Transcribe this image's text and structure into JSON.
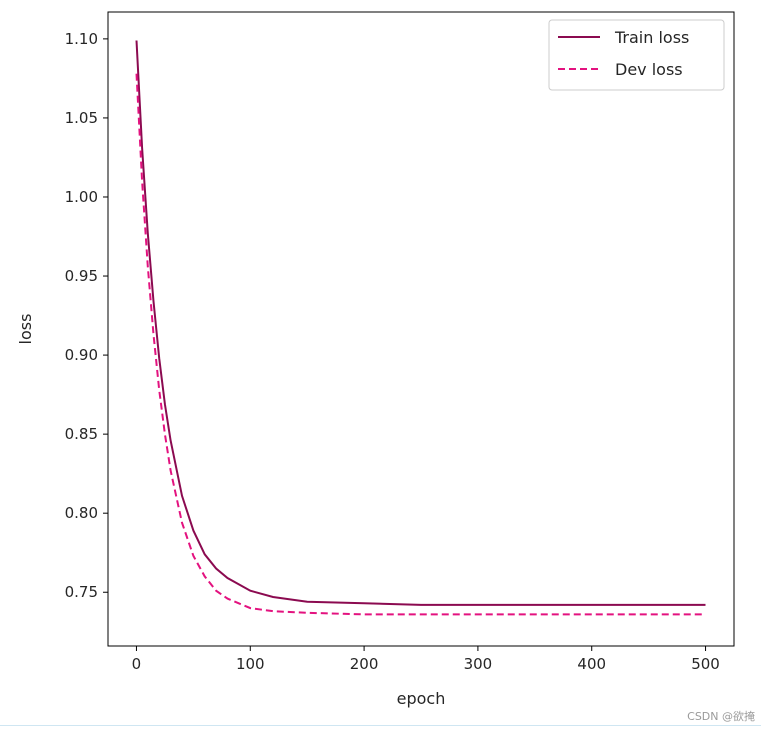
{
  "chart_data": {
    "type": "line",
    "title": "",
    "xlabel": "epoch",
    "ylabel": "loss",
    "xlim": [
      -25,
      525
    ],
    "ylim": [
      0.716,
      1.117
    ],
    "x_ticks": [
      0,
      100,
      200,
      300,
      400,
      500
    ],
    "y_ticks": [
      0.75,
      0.8,
      0.85,
      0.9,
      0.95,
      1.0,
      1.05,
      1.1
    ],
    "legend_position": "top-right",
    "grid": false,
    "series": [
      {
        "name": "Train loss",
        "style": "solid",
        "color": "#8b0a50",
        "x": [
          0,
          5,
          10,
          15,
          20,
          25,
          30,
          40,
          50,
          60,
          70,
          80,
          100,
          120,
          150,
          200,
          250,
          300,
          400,
          500
        ],
        "y": [
          1.099,
          1.031,
          0.977,
          0.934,
          0.898,
          0.869,
          0.846,
          0.811,
          0.789,
          0.774,
          0.765,
          0.759,
          0.751,
          0.747,
          0.744,
          0.743,
          0.742,
          0.742,
          0.742,
          0.742
        ]
      },
      {
        "name": "Dev loss",
        "style": "dashed",
        "color": "#e3127f",
        "x": [
          0,
          5,
          10,
          15,
          20,
          25,
          30,
          40,
          50,
          60,
          70,
          80,
          100,
          120,
          150,
          200,
          250,
          300,
          400,
          500
        ],
        "y": [
          1.078,
          1.01,
          0.956,
          0.913,
          0.878,
          0.85,
          0.827,
          0.794,
          0.773,
          0.76,
          0.751,
          0.746,
          0.74,
          0.738,
          0.737,
          0.736,
          0.736,
          0.736,
          0.736,
          0.736
        ]
      }
    ]
  },
  "watermark": "CSDN @欲掩"
}
